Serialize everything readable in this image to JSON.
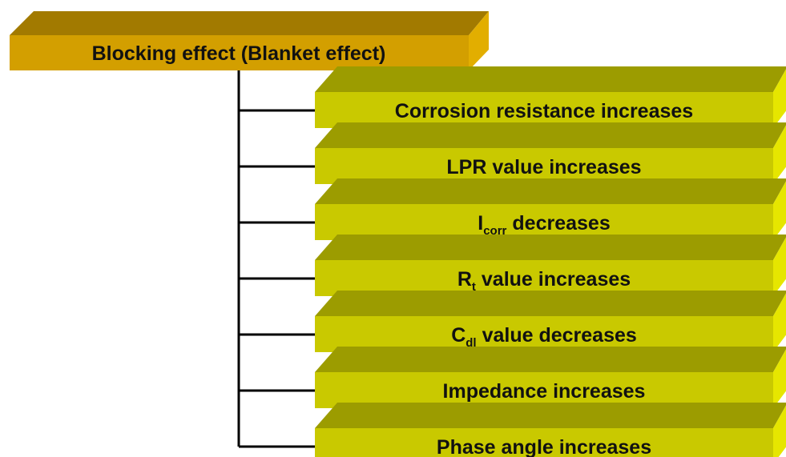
{
  "root": {
    "label": "Blocking effect (Blanket effect)"
  },
  "items": [
    {
      "label": "Corrosion resistance increases"
    },
    {
      "label": "LPR value increases"
    },
    {
      "symbol": "I",
      "subscript": "corr",
      "label": "decreases"
    },
    {
      "symbol": "R",
      "subscript": "t",
      "label": "value increases"
    },
    {
      "symbol": "C",
      "subscript": "dl",
      "label": "value decreases"
    },
    {
      "label": "Impedance increases"
    },
    {
      "label": "Phase angle increases"
    }
  ]
}
